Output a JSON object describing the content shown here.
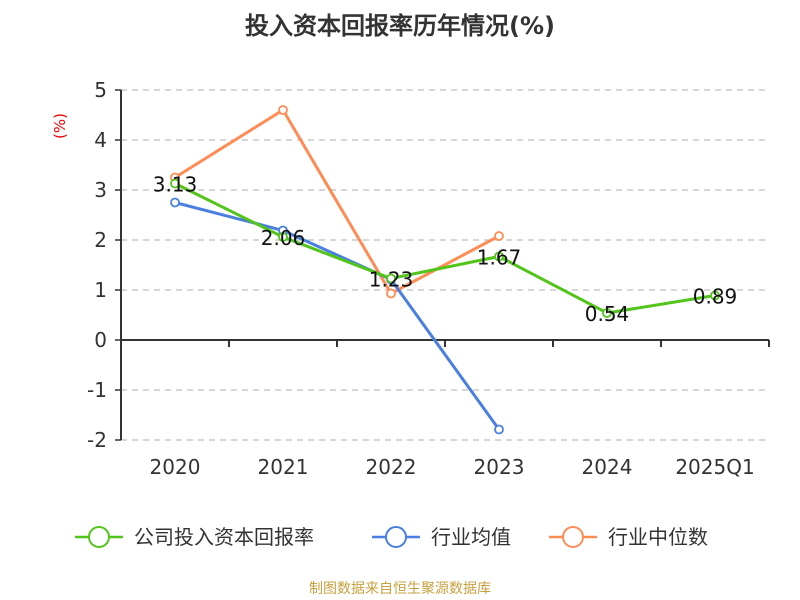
{
  "chart_data": {
    "type": "line",
    "title": "投入资本回报率历年情况(%)",
    "ylabel": "(%)",
    "xlabel": "",
    "categories": [
      "2020",
      "2021",
      "2022",
      "2023",
      "2024",
      "2025Q1"
    ],
    "ylim": [
      -2,
      5
    ],
    "yticks": [
      -2,
      -1,
      0,
      1,
      2,
      3,
      4,
      5
    ],
    "grid": true,
    "legend_position": "bottom",
    "series": [
      {
        "name": "公司投入资本回报率",
        "color": "#52c41a",
        "values": [
          3.13,
          2.06,
          1.23,
          1.67,
          0.54,
          0.89
        ],
        "labels": [
          "3.13",
          "2.06",
          "1.23",
          "1.67",
          "0.54",
          "0.89"
        ]
      },
      {
        "name": "行业均值",
        "color": "#4a7fe0",
        "values": [
          2.75,
          2.19,
          1.21,
          -1.79,
          null,
          null
        ]
      },
      {
        "name": "行业中位数",
        "color": "#ff8c55",
        "values": [
          3.25,
          4.6,
          0.93,
          2.08,
          null,
          null
        ]
      }
    ]
  },
  "source": "制图数据来自恒生聚源数据库"
}
